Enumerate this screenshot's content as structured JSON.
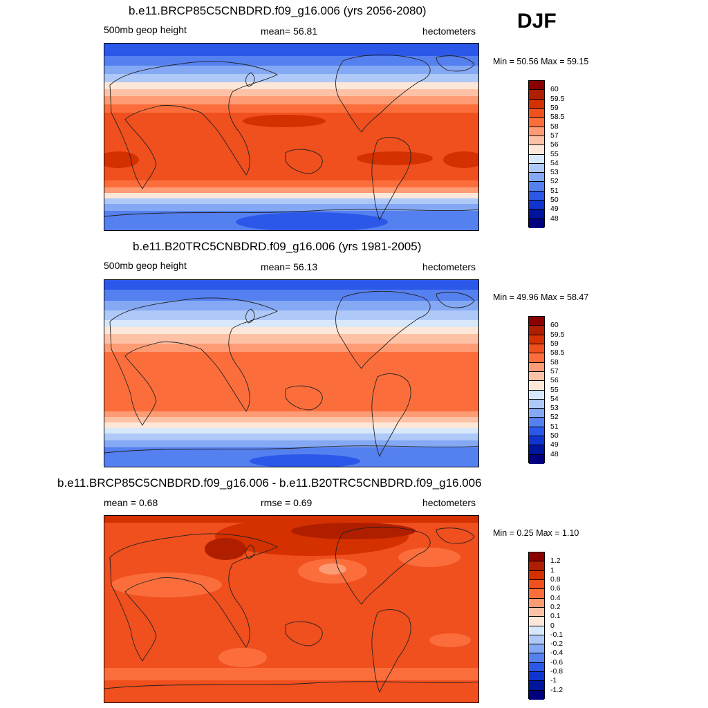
{
  "season": "DJF",
  "panels": [
    {
      "title": "b.e11.BRCP85C5CNBDRD.f09_g16.006 (yrs 2056-2080)",
      "left_label": "500mb geop height",
      "center_label": "mean=  56.81",
      "right_label": "hectometers",
      "minmax": "Min =  50.56 Max =  59.15",
      "colorbar_labels": [
        "60",
        "59.5",
        "59",
        "58.5",
        "58",
        "57",
        "56",
        "55",
        "54",
        "53",
        "52",
        "51",
        "50",
        "49",
        "48"
      ]
    },
    {
      "title": "b.e11.B20TRC5CNBDRD.f09_g16.006 (yrs 1981-2005)",
      "left_label": "500mb geop height",
      "center_label": "mean=  56.13",
      "right_label": "hectometers",
      "minmax": "Min =  49.96 Max =  58.47",
      "colorbar_labels": [
        "60",
        "59.5",
        "59",
        "58.5",
        "58",
        "57",
        "56",
        "55",
        "54",
        "53",
        "52",
        "51",
        "50",
        "49",
        "48"
      ]
    },
    {
      "title": "b.e11.BRCP85C5CNBDRD.f09_g16.006 - b.e11.B20TRC5CNBDRD.f09_g16.006",
      "left_label": "mean =   0.68",
      "center_label": "rmse =   0.69",
      "right_label": "hectometers",
      "minmax": "Min =   0.25 Max =   1.10",
      "colorbar_labels": [
        "1.2",
        "1",
        "0.8",
        "0.6",
        "0.4",
        "0.2",
        "0.1",
        "0",
        "-0.1",
        "-0.2",
        "-0.4",
        "-0.6",
        "-0.8",
        "-1",
        "-1.2"
      ]
    }
  ],
  "colorbar_colors": [
    "#8b0000",
    "#b01e00",
    "#d43000",
    "#f04f1e",
    "#fb6e3c",
    "#fc9b74",
    "#fdc2a6",
    "#fde7d8",
    "#d8e8fb",
    "#aec9f7",
    "#84a8f3",
    "#5580f0",
    "#2b58e8",
    "#1034d0",
    "#00159e",
    "#000080"
  ]
}
